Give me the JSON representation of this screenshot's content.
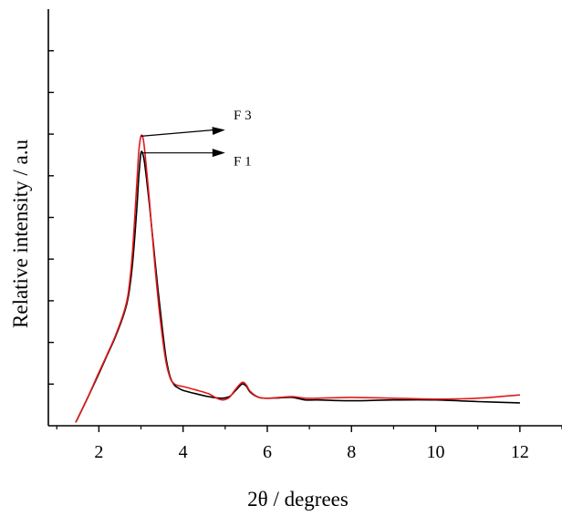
{
  "chart_data": {
    "type": "line",
    "xlabel": "2θ / degrees",
    "ylabel": "Relative intensity / a.u",
    "xlim": [
      0.8,
      13
    ],
    "ylim": [
      0,
      1.0
    ],
    "x_ticks": [
      2,
      4,
      6,
      8,
      10,
      12
    ],
    "y_ticks": [
      0.1,
      0.2,
      0.3,
      0.4,
      0.5,
      0.6,
      0.7,
      0.8,
      0.9
    ],
    "grid": false,
    "legend": "none",
    "series": [
      {
        "color": "#000000",
        "points": [
          [
            1.45,
            0.008
          ],
          [
            1.7,
            0.06
          ],
          [
            2.0,
            0.125
          ],
          [
            2.2,
            0.17
          ],
          [
            2.4,
            0.215
          ],
          [
            2.6,
            0.27
          ],
          [
            2.7,
            0.31
          ],
          [
            2.8,
            0.39
          ],
          [
            2.9,
            0.52
          ],
          [
            2.95,
            0.6
          ],
          [
            3.0,
            0.655
          ],
          [
            3.05,
            0.65
          ],
          [
            3.1,
            0.62
          ],
          [
            3.2,
            0.53
          ],
          [
            3.3,
            0.43
          ],
          [
            3.4,
            0.33
          ],
          [
            3.5,
            0.24
          ],
          [
            3.6,
            0.16
          ],
          [
            3.7,
            0.115
          ],
          [
            3.8,
            0.097
          ],
          [
            3.9,
            0.09
          ],
          [
            4.0,
            0.085
          ],
          [
            4.3,
            0.077
          ],
          [
            4.6,
            0.07
          ],
          [
            4.9,
            0.066
          ],
          [
            5.1,
            0.07
          ],
          [
            5.25,
            0.085
          ],
          [
            5.4,
            0.1
          ],
          [
            5.5,
            0.095
          ],
          [
            5.6,
            0.08
          ],
          [
            5.8,
            0.068
          ],
          [
            6.0,
            0.066
          ],
          [
            6.3,
            0.067
          ],
          [
            6.6,
            0.068
          ],
          [
            6.9,
            0.062
          ],
          [
            7.2,
            0.062
          ],
          [
            8.0,
            0.06
          ],
          [
            9.0,
            0.062
          ],
          [
            10.0,
            0.062
          ],
          [
            11.0,
            0.058
          ],
          [
            12.0,
            0.055
          ]
        ]
      },
      {
        "color": "#e0191b",
        "points": [
          [
            1.45,
            0.008
          ],
          [
            1.7,
            0.06
          ],
          [
            2.0,
            0.128
          ],
          [
            2.2,
            0.172
          ],
          [
            2.4,
            0.218
          ],
          [
            2.6,
            0.275
          ],
          [
            2.7,
            0.32
          ],
          [
            2.8,
            0.42
          ],
          [
            2.9,
            0.58
          ],
          [
            2.95,
            0.66
          ],
          [
            3.0,
            0.695
          ],
          [
            3.05,
            0.69
          ],
          [
            3.1,
            0.65
          ],
          [
            3.2,
            0.54
          ],
          [
            3.3,
            0.42
          ],
          [
            3.4,
            0.31
          ],
          [
            3.5,
            0.22
          ],
          [
            3.6,
            0.15
          ],
          [
            3.7,
            0.113
          ],
          [
            3.8,
            0.1
          ],
          [
            3.9,
            0.096
          ],
          [
            4.0,
            0.094
          ],
          [
            4.3,
            0.086
          ],
          [
            4.6,
            0.077
          ],
          [
            4.8,
            0.066
          ],
          [
            4.95,
            0.062
          ],
          [
            5.1,
            0.068
          ],
          [
            5.25,
            0.088
          ],
          [
            5.4,
            0.104
          ],
          [
            5.5,
            0.098
          ],
          [
            5.6,
            0.082
          ],
          [
            5.8,
            0.068
          ],
          [
            6.0,
            0.066
          ],
          [
            6.3,
            0.068
          ],
          [
            6.6,
            0.07
          ],
          [
            6.9,
            0.066
          ],
          [
            7.2,
            0.066
          ],
          [
            8.0,
            0.068
          ],
          [
            9.0,
            0.066
          ],
          [
            10.0,
            0.064
          ],
          [
            11.0,
            0.066
          ],
          [
            12.0,
            0.074
          ]
        ]
      }
    ],
    "annotations": [
      {
        "text": "F 3",
        "x_from": 3.0,
        "y_from": 0.695,
        "x_to": 5.0,
        "y_to": 0.71,
        "text_x": 5.2,
        "text_y": 0.735
      },
      {
        "text": "F 1",
        "x_from": 3.0,
        "y_from": 0.655,
        "x_to": 5.0,
        "y_to": 0.655,
        "text_x": 5.2,
        "text_y": 0.625
      }
    ]
  }
}
